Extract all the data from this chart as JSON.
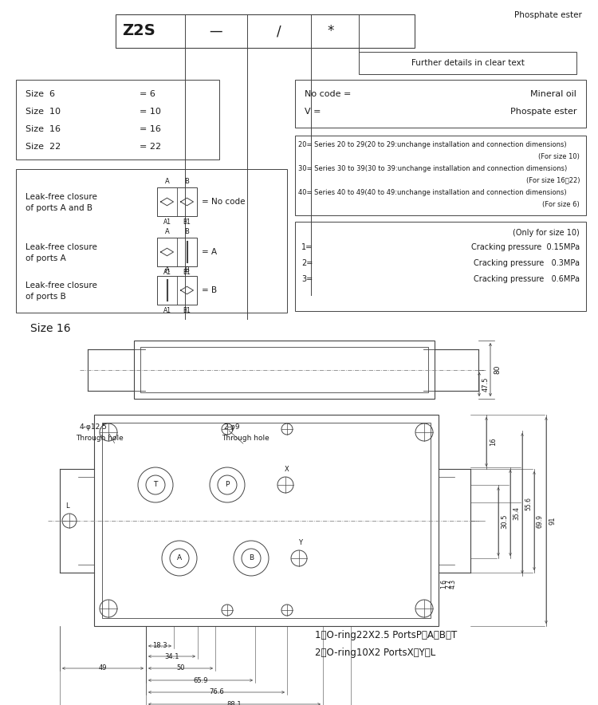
{
  "bg_color": "#ffffff",
  "text_color": "#1a1a1a",
  "line_color": "#444444",
  "fig_width": 7.5,
  "fig_height": 8.84,
  "phosphate_text": "Phosphate ester",
  "further_text": "Further details in clear text",
  "size_lines": [
    [
      "Size  6",
      "= 6"
    ],
    [
      "Size  10",
      "= 10"
    ],
    [
      "Size  16",
      "= 16"
    ],
    [
      "Size  22",
      "= 22"
    ]
  ],
  "oil_lines": [
    [
      "No code =",
      "Mineral oil"
    ],
    [
      "V =",
      "Phospate ester"
    ]
  ],
  "series_lines": [
    [
      "20= Series 20 to 29(20 to 29:unchange installation and connection dimensions)",
      false
    ],
    [
      "(For size 10)",
      true
    ],
    [
      "30= Series 30 to 39(30 to 39:unchange installation and connection dimensions)",
      false
    ],
    [
      "(For size 16、22)",
      true
    ],
    [
      "40= Series 40 to 49(40 to 49:unchange installation and connection dimensions)",
      false
    ],
    [
      "(For size 6)",
      true
    ]
  ],
  "crack_lines": [
    [
      "(Only for size 10)",
      true,
      ""
    ],
    [
      "1=",
      false,
      "Cracking pressure  0.15MPa"
    ],
    [
      "2=",
      false,
      "Cracking pressure   0.3MPa"
    ],
    [
      "3=",
      false,
      "Cracking pressure   0.6MPa"
    ]
  ],
  "oring_lines": [
    "1、O-ring22X2.5 PortsP、A、B、T",
    "2、O-ring10X2 PortsX、Y、L"
  ]
}
